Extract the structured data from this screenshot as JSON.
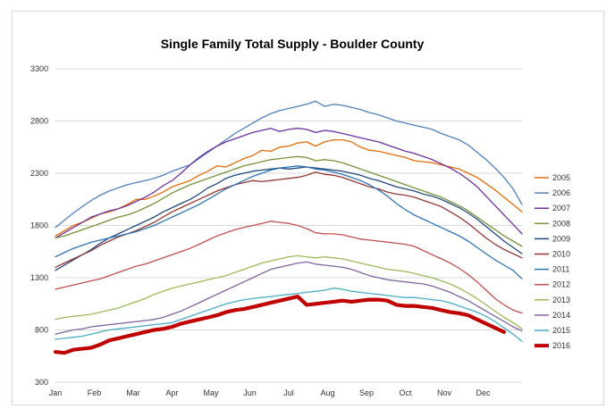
{
  "chart_data": {
    "type": "line",
    "title": "Single Family Total Supply - Boulder County",
    "xlabel": "",
    "ylabel": "",
    "ylim": [
      300,
      3300
    ],
    "yticks": [
      300,
      800,
      1300,
      1800,
      2300,
      2800,
      3300
    ],
    "xticks": [
      "Jan",
      "Feb",
      "Mar",
      "Apr",
      "May",
      "Jun",
      "Jul",
      "Aug",
      "Sep",
      "Oct",
      "Nov",
      "Dec"
    ],
    "grid": "horizontal",
    "legend": "right",
    "weeks": 53,
    "series": [
      {
        "name": "2005",
        "color": "#E46C0A",
        "width": 1.3,
        "values": [
          1700,
          1750,
          1800,
          1830,
          1870,
          1910,
          1930,
          1960,
          2000,
          2050,
          2050,
          2080,
          2120,
          2170,
          2200,
          2230,
          2280,
          2320,
          2370,
          2360,
          2400,
          2440,
          2470,
          2520,
          2510,
          2550,
          2560,
          2590,
          2600,
          2560,
          2600,
          2620,
          2620,
          2600,
          2550,
          2520,
          2510,
          2490,
          2470,
          2450,
          2420,
          2410,
          2400,
          2380,
          2360,
          2340,
          2300,
          2260,
          2200,
          2140,
          2070,
          2000,
          1930
        ]
      },
      {
        "name": "2006",
        "color": "#4F81BD",
        "width": 1.3,
        "values": [
          1780,
          1850,
          1920,
          1980,
          2040,
          2090,
          2130,
          2160,
          2190,
          2210,
          2230,
          2250,
          2280,
          2320,
          2350,
          2380,
          2440,
          2500,
          2560,
          2620,
          2680,
          2730,
          2780,
          2830,
          2870,
          2900,
          2920,
          2940,
          2960,
          2990,
          2940,
          2960,
          2950,
          2930,
          2910,
          2880,
          2860,
          2830,
          2800,
          2780,
          2760,
          2740,
          2720,
          2680,
          2650,
          2620,
          2570,
          2500,
          2430,
          2350,
          2260,
          2150,
          2000
        ]
      },
      {
        "name": "2007",
        "color": "#7030A0",
        "width": 1.3,
        "values": [
          1680,
          1730,
          1780,
          1830,
          1880,
          1910,
          1940,
          1960,
          1990,
          2030,
          2070,
          2120,
          2180,
          2230,
          2300,
          2380,
          2450,
          2510,
          2560,
          2600,
          2630,
          2660,
          2690,
          2710,
          2730,
          2700,
          2720,
          2730,
          2720,
          2690,
          2710,
          2700,
          2680,
          2660,
          2640,
          2620,
          2600,
          2570,
          2540,
          2510,
          2490,
          2460,
          2430,
          2390,
          2350,
          2300,
          2240,
          2170,
          2080,
          1990,
          1900,
          1810,
          1720
        ]
      },
      {
        "name": "2008",
        "color": "#77933C",
        "width": 1.3,
        "values": [
          1680,
          1700,
          1730,
          1760,
          1790,
          1820,
          1850,
          1880,
          1900,
          1930,
          1970,
          2010,
          2060,
          2110,
          2150,
          2190,
          2220,
          2250,
          2280,
          2310,
          2340,
          2370,
          2390,
          2410,
          2430,
          2440,
          2450,
          2460,
          2450,
          2420,
          2430,
          2420,
          2400,
          2370,
          2340,
          2310,
          2280,
          2250,
          2220,
          2190,
          2160,
          2130,
          2100,
          2070,
          2030,
          1990,
          1940,
          1880,
          1820,
          1760,
          1700,
          1650,
          1600
        ]
      },
      {
        "name": "2009",
        "color": "#1F497D",
        "width": 1.3,
        "values": [
          1370,
          1420,
          1470,
          1520,
          1570,
          1630,
          1680,
          1720,
          1760,
          1800,
          1840,
          1880,
          1930,
          1970,
          2010,
          2050,
          2100,
          2160,
          2200,
          2250,
          2280,
          2300,
          2320,
          2330,
          2340,
          2350,
          2340,
          2350,
          2360,
          2350,
          2340,
          2330,
          2320,
          2300,
          2280,
          2250,
          2230,
          2200,
          2170,
          2150,
          2130,
          2100,
          2080,
          2050,
          2010,
          1970,
          1920,
          1860,
          1790,
          1720,
          1650,
          1590,
          1530
        ]
      },
      {
        "name": "2010",
        "color": "#953735",
        "width": 1.3,
        "values": [
          1400,
          1440,
          1480,
          1520,
          1560,
          1610,
          1650,
          1690,
          1720,
          1750,
          1790,
          1830,
          1880,
          1930,
          1970,
          2010,
          2050,
          2090,
          2130,
          2160,
          2190,
          2210,
          2230,
          2220,
          2230,
          2240,
          2250,
          2260,
          2280,
          2310,
          2290,
          2280,
          2260,
          2230,
          2200,
          2170,
          2150,
          2120,
          2100,
          2090,
          2070,
          2040,
          2010,
          1980,
          1930,
          1880,
          1820,
          1750,
          1680,
          1620,
          1570,
          1530,
          1490
        ]
      },
      {
        "name": "2011",
        "color": "#2E75B6",
        "width": 1.3,
        "values": [
          1500,
          1540,
          1580,
          1610,
          1640,
          1660,
          1680,
          1700,
          1720,
          1740,
          1770,
          1800,
          1840,
          1880,
          1920,
          1960,
          2000,
          2050,
          2100,
          2150,
          2190,
          2230,
          2270,
          2300,
          2330,
          2350,
          2360,
          2370,
          2360,
          2340,
          2330,
          2310,
          2290,
          2260,
          2230,
          2190,
          2140,
          2080,
          2010,
          1950,
          1900,
          1860,
          1820,
          1780,
          1740,
          1700,
          1650,
          1590,
          1530,
          1470,
          1420,
          1370,
          1290
        ]
      },
      {
        "name": "2012",
        "color": "#C0504D",
        "width": 1.3,
        "values": [
          1190,
          1210,
          1230,
          1250,
          1270,
          1290,
          1320,
          1350,
          1380,
          1410,
          1430,
          1460,
          1490,
          1520,
          1550,
          1580,
          1620,
          1660,
          1700,
          1730,
          1760,
          1780,
          1800,
          1820,
          1840,
          1830,
          1820,
          1800,
          1770,
          1730,
          1720,
          1720,
          1710,
          1690,
          1670,
          1660,
          1650,
          1640,
          1630,
          1620,
          1600,
          1560,
          1520,
          1480,
          1440,
          1390,
          1330,
          1260,
          1180,
          1100,
          1040,
          990,
          960
        ]
      },
      {
        "name": "2013",
        "color": "#9BBB59",
        "width": 1.3,
        "values": [
          900,
          920,
          930,
          940,
          950,
          970,
          990,
          1010,
          1040,
          1070,
          1100,
          1140,
          1170,
          1200,
          1220,
          1240,
          1260,
          1280,
          1300,
          1320,
          1350,
          1380,
          1410,
          1440,
          1460,
          1480,
          1500,
          1510,
          1500,
          1490,
          1500,
          1490,
          1480,
          1460,
          1440,
          1420,
          1400,
          1380,
          1370,
          1360,
          1340,
          1320,
          1300,
          1270,
          1240,
          1200,
          1150,
          1100,
          1040,
          980,
          920,
          870,
          810
        ]
      },
      {
        "name": "2014",
        "color": "#8064A2",
        "width": 1.3,
        "values": [
          760,
          780,
          800,
          810,
          830,
          840,
          850,
          860,
          870,
          880,
          890,
          900,
          920,
          950,
          980,
          1020,
          1060,
          1100,
          1140,
          1180,
          1220,
          1260,
          1300,
          1340,
          1380,
          1400,
          1420,
          1440,
          1450,
          1430,
          1420,
          1410,
          1400,
          1380,
          1350,
          1320,
          1300,
          1280,
          1270,
          1260,
          1250,
          1240,
          1220,
          1190,
          1160,
          1120,
          1080,
          1030,
          980,
          930,
          880,
          830,
          790
        ]
      },
      {
        "name": "2015",
        "color": "#4BACC6",
        "width": 1.3,
        "values": [
          710,
          720,
          730,
          740,
          760,
          780,
          800,
          810,
          820,
          830,
          840,
          850,
          860,
          870,
          900,
          930,
          960,
          990,
          1020,
          1050,
          1070,
          1090,
          1100,
          1110,
          1120,
          1130,
          1140,
          1150,
          1160,
          1170,
          1180,
          1200,
          1190,
          1170,
          1160,
          1150,
          1140,
          1130,
          1120,
          1110,
          1110,
          1100,
          1090,
          1080,
          1060,
          1030,
          1000,
          970,
          930,
          880,
          820,
          760,
          690
        ]
      },
      {
        "name": "2016",
        "color": "#C00000",
        "width": 4.2,
        "values": [
          590,
          580,
          610,
          620,
          630,
          660,
          700,
          720,
          740,
          760,
          780,
          800,
          810,
          830,
          860,
          880,
          900,
          920,
          940,
          970,
          990,
          1000,
          1020,
          1040,
          1060,
          1080,
          1100,
          1120,
          1040,
          1050,
          1060,
          1070,
          1080,
          1070,
          1080,
          1090,
          1090,
          1080,
          1040,
          1030,
          1030,
          1020,
          1010,
          990,
          970,
          960,
          940,
          900,
          860,
          820,
          780
        ]
      }
    ]
  }
}
